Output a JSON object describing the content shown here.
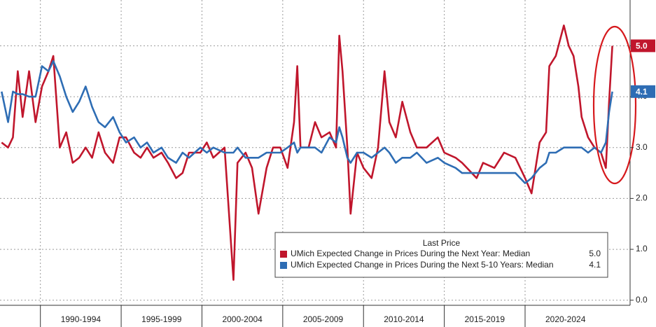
{
  "chart_data": {
    "type": "line",
    "x": [
      1987.6,
      1988.0,
      1988.3,
      1988.6,
      1988.9,
      1989.3,
      1989.7,
      1990.1,
      1990.5,
      1990.8,
      1991.2,
      1991.6,
      1992.0,
      1992.4,
      1992.8,
      1993.2,
      1993.6,
      1994.0,
      1994.5,
      1994.9,
      1995.3,
      1995.8,
      1996.2,
      1996.6,
      1997.0,
      1997.5,
      1997.9,
      1998.4,
      1998.8,
      1999.2,
      1999.9,
      2000.3,
      2000.7,
      2001.4,
      2001.95,
      2002.2,
      2002.7,
      2003.1,
      2003.5,
      2004.0,
      2004.4,
      2004.85,
      2005.3,
      2005.7,
      2005.9,
      2006.1,
      2006.6,
      2007.0,
      2007.4,
      2007.9,
      2008.3,
      2008.5,
      2008.7,
      2009.0,
      2009.2,
      2009.6,
      2010.0,
      2010.5,
      2010.9,
      2011.3,
      2011.6,
      2012.0,
      2012.4,
      2012.9,
      2013.3,
      2013.9,
      2014.6,
      2015.0,
      2015.7,
      2016.1,
      2017.0,
      2017.4,
      2018.1,
      2018.7,
      2019.4,
      2020.0,
      2020.4,
      2020.9,
      2021.3,
      2021.5,
      2021.9,
      2022.4,
      2022.7,
      2023.0,
      2023.3,
      2023.5,
      2023.9,
      2024.3,
      2024.7,
      2025.0,
      2025.2,
      2025.4
    ],
    "series": [
      {
        "name": "UMich Expected Change in Prices During the Next Year: Median",
        "color": "#c0162c",
        "last_label": "5.0",
        "values": [
          3.1,
          3.0,
          3.2,
          4.5,
          3.6,
          4.5,
          3.5,
          4.2,
          4.5,
          4.8,
          3.0,
          3.3,
          2.7,
          2.8,
          3.0,
          2.8,
          3.3,
          2.9,
          2.7,
          3.2,
          3.2,
          2.9,
          2.8,
          3.0,
          2.8,
          2.9,
          2.7,
          2.4,
          2.5,
          2.9,
          2.9,
          3.1,
          2.8,
          3.0,
          0.4,
          2.7,
          2.9,
          2.6,
          1.7,
          2.6,
          3.0,
          3.0,
          2.6,
          3.5,
          4.6,
          3.0,
          3.0,
          3.5,
          3.2,
          3.3,
          3.0,
          5.2,
          4.5,
          3.0,
          1.7,
          2.9,
          2.6,
          2.4,
          3.0,
          4.5,
          3.5,
          3.2,
          3.9,
          3.3,
          3.0,
          3.0,
          3.2,
          2.9,
          2.8,
          2.7,
          2.4,
          2.7,
          2.6,
          2.9,
          2.8,
          2.4,
          2.1,
          3.1,
          3.3,
          4.6,
          4.8,
          5.4,
          5.0,
          4.8,
          4.2,
          3.6,
          3.2,
          3.0,
          2.9,
          2.6,
          3.9,
          5.0
        ]
      },
      {
        "name": "UMich Expected Change in Prices During the Next 5-10 Years: Median",
        "color": "#2e6db4",
        "last_label": "4.1",
        "values": [
          4.1,
          3.5,
          4.1,
          4.05,
          4.05,
          4.0,
          4.0,
          4.6,
          4.5,
          4.7,
          4.4,
          4.0,
          3.7,
          3.9,
          4.2,
          3.8,
          3.5,
          3.4,
          3.6,
          3.3,
          3.1,
          3.2,
          3.0,
          3.1,
          2.9,
          3.0,
          2.8,
          2.7,
          2.9,
          2.8,
          3.0,
          2.9,
          3.0,
          2.9,
          2.9,
          3.0,
          2.8,
          2.8,
          2.8,
          2.9,
          2.9,
          2.9,
          3.0,
          3.1,
          2.9,
          3.0,
          3.0,
          3.0,
          2.9,
          3.2,
          3.1,
          3.4,
          3.2,
          2.8,
          2.7,
          2.9,
          2.9,
          2.8,
          2.9,
          3.0,
          2.9,
          2.7,
          2.8,
          2.8,
          2.9,
          2.7,
          2.8,
          2.7,
          2.6,
          2.5,
          2.5,
          2.5,
          2.5,
          2.5,
          2.5,
          2.3,
          2.4,
          2.6,
          2.7,
          2.9,
          2.9,
          3.0,
          3.0,
          3.0,
          3.0,
          3.0,
          2.9,
          3.0,
          2.9,
          3.1,
          3.7,
          4.1
        ]
      }
    ],
    "xlim": [
      1987.5,
      2026.5
    ],
    "ylim": [
      -0.1,
      5.9
    ],
    "xticks": [
      {
        "value": 1990,
        "label": "1990-1994"
      },
      {
        "value": 1995,
        "label": "1995-1999"
      },
      {
        "value": 2000,
        "label": "2000-2004"
      },
      {
        "value": 2005,
        "label": "2005-2009"
      },
      {
        "value": 2010,
        "label": "2010-2014"
      },
      {
        "value": 2015,
        "label": "2015-2019"
      },
      {
        "value": 2020,
        "label": "2020-2024"
      }
    ],
    "yticks": [
      {
        "value": 0,
        "label": "0.0"
      },
      {
        "value": 1,
        "label": "1.0"
      },
      {
        "value": 2,
        "label": "2.0"
      },
      {
        "value": 3,
        "label": "3.0"
      },
      {
        "value": 4,
        "label": "4.0"
      },
      {
        "value": 5,
        "label": "5.0"
      }
    ],
    "grid": true,
    "legend_title": "Last Price",
    "legend_position": "lower right"
  }
}
